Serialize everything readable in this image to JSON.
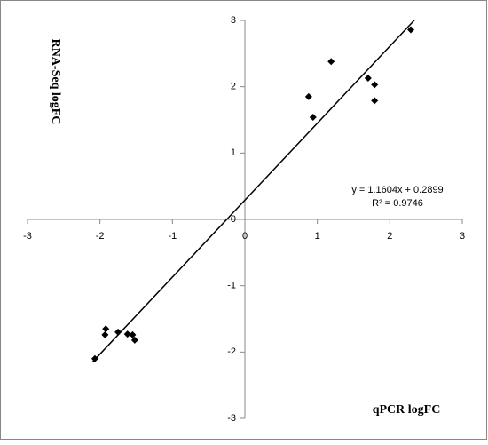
{
  "chart_data": {
    "type": "scatter",
    "x_label": "qPCR logFC",
    "y_label": "RNA-Seq logFC",
    "xlim": [
      -3,
      3
    ],
    "ylim": [
      -3,
      3
    ],
    "xticks": [
      -3,
      -2,
      -1,
      0,
      1,
      2,
      3
    ],
    "yticks": [
      -3,
      -2,
      -1,
      0,
      1,
      2,
      3
    ],
    "color": "#000000",
    "series": [
      {
        "x": [
          -2.07,
          -1.92,
          -1.93,
          -1.75,
          -1.62,
          -1.55,
          -1.52,
          0.88,
          0.94,
          1.19,
          1.7,
          1.79,
          1.79,
          2.29
        ],
        "values": [
          -2.1,
          -1.65,
          -1.74,
          -1.7,
          -1.73,
          -1.74,
          -1.82,
          1.85,
          1.54,
          2.38,
          2.13,
          2.03,
          1.79,
          2.86
        ]
      }
    ],
    "trendline": {
      "equation": "y = 1.1604x + 0.2899",
      "r_squared": "R² = 0.9746",
      "slope": 1.1604,
      "intercept": 0.2899,
      "x": [
        -2.1,
        2.34
      ]
    }
  }
}
